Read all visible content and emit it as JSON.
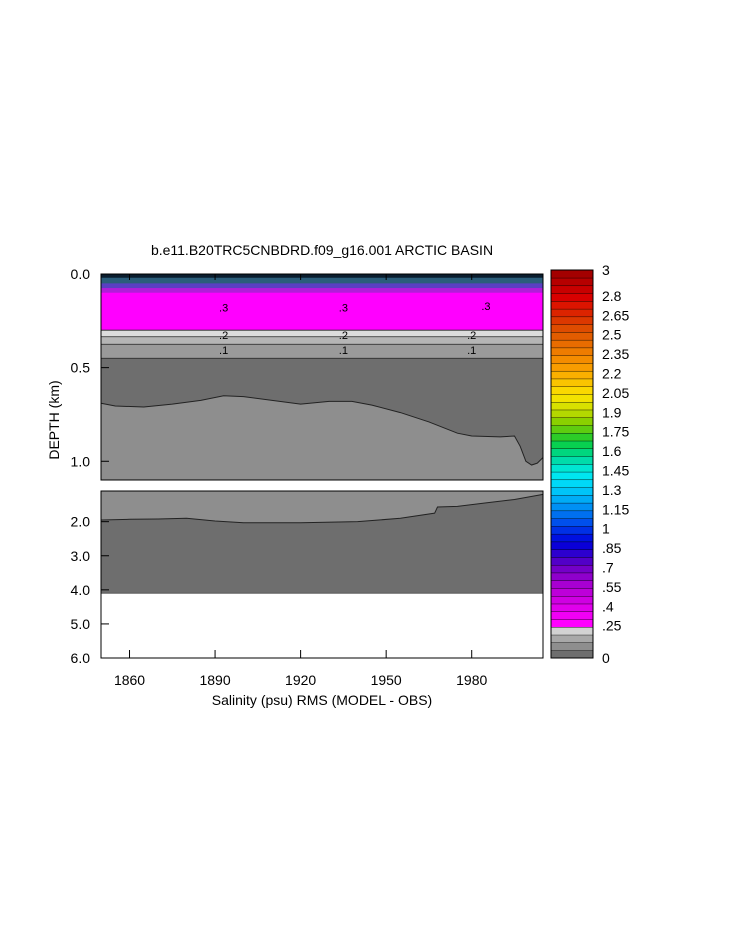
{
  "chart_data": {
    "type": "heatmap",
    "title": "b.e11.B20TRC5CNBDRD.f09_g16.001 ARCTIC BASIN",
    "xlabel": "Salinity (psu) RMS (MODEL - OBS)",
    "ylabel": "DEPTH (km)",
    "xlim": [
      1850,
      2005
    ],
    "x_ticks": [
      1860,
      1890,
      1920,
      1950,
      1980
    ],
    "x_tick_labels": [
      "1860",
      "1890",
      "1920",
      "1950",
      "1980"
    ],
    "panels": [
      {
        "name": "upper",
        "ylim": [
          0.0,
          1.1
        ],
        "y_ticks": [
          0.0,
          0.5,
          1.0
        ],
        "y_tick_labels": [
          "0.0",
          "0.5",
          "1.0"
        ],
        "bands": [
          {
            "top": 0.0,
            "bottom": 0.02,
            "color": "#0a1d2e"
          },
          {
            "top": 0.02,
            "bottom": 0.05,
            "color": "#2b5d7a"
          },
          {
            "top": 0.05,
            "bottom": 0.075,
            "color": "#5a3fc2"
          },
          {
            "top": 0.075,
            "bottom": 0.1,
            "color": "#b01ed8"
          },
          {
            "top": 0.1,
            "bottom": 0.3,
            "color": "#ff00ff"
          },
          {
            "top": 0.3,
            "bottom": 0.335,
            "color": "#dcdcdc"
          },
          {
            "top": 0.335,
            "bottom": 0.375,
            "color": "#b5b5b5"
          },
          {
            "top": 0.375,
            "bottom": 0.45,
            "color": "#9a9a9a"
          },
          {
            "top": 0.45,
            "bottom": 1.1,
            "color": "#6e6e6e"
          }
        ],
        "filled_region": {
          "color": "#8e8e8e",
          "x": [
            1850,
            1855,
            1865,
            1875,
            1885,
            1893,
            1900,
            1910,
            1920,
            1930,
            1938,
            1945,
            1955,
            1965,
            1975,
            1980,
            1990,
            1995,
            1997,
            1999,
            2001,
            2003,
            2005
          ],
          "top_depth": [
            0.69,
            0.705,
            0.71,
            0.695,
            0.675,
            0.65,
            0.655,
            0.675,
            0.695,
            0.68,
            0.68,
            0.7,
            0.74,
            0.79,
            0.85,
            0.865,
            0.87,
            0.865,
            0.92,
            1.0,
            1.02,
            1.01,
            0.98
          ]
        },
        "contour_labels": [
          {
            "x": 1893,
            "depth": 0.18,
            "text": ".3"
          },
          {
            "x": 1935,
            "depth": 0.18,
            "text": ".3"
          },
          {
            "x": 1985,
            "depth": 0.17,
            "text": ".3"
          },
          {
            "x": 1893,
            "depth": 0.325,
            "text": ".2"
          },
          {
            "x": 1935,
            "depth": 0.325,
            "text": ".2"
          },
          {
            "x": 1980,
            "depth": 0.325,
            "text": ".2"
          },
          {
            "x": 1893,
            "depth": 0.405,
            "text": ".1"
          },
          {
            "x": 1935,
            "depth": 0.405,
            "text": ".1"
          },
          {
            "x": 1980,
            "depth": 0.405,
            "text": ".1"
          }
        ]
      },
      {
        "name": "lower",
        "ylim": [
          1.1,
          6.0
        ],
        "y_ticks": [
          2.0,
          3.0,
          4.0,
          5.0,
          6.0
        ],
        "y_tick_labels": [
          "2.0",
          "3.0",
          "4.0",
          "5.0",
          "6.0"
        ],
        "base_color": "#6e6e6e",
        "bottom_depth": 4.1,
        "below_color": "#ffffff",
        "filled_region": {
          "color": "#8e8e8e",
          "x": [
            1850,
            1860,
            1870,
            1880,
            1890,
            1900,
            1920,
            1940,
            1955,
            1967,
            1968,
            1975,
            1985,
            1995,
            2005
          ],
          "boundary_depth": [
            1.95,
            1.93,
            1.92,
            1.9,
            1.98,
            2.03,
            2.03,
            2.0,
            1.9,
            1.75,
            1.57,
            1.55,
            1.45,
            1.35,
            1.2
          ]
        }
      }
    ],
    "colorbar": {
      "min": 0,
      "max": 3,
      "colors": [
        "#6e6e6e",
        "#8e8e8e",
        "#a8a8a8",
        "#d2d2d2",
        "#ff00ff",
        "#f000f5",
        "#e000ec",
        "#cf00e2",
        "#bd00d9",
        "#a800d2",
        "#8f00cc",
        "#7400c8",
        "#5200c8",
        "#2d00cf",
        "#0a00d8",
        "#0010e0",
        "#0030e6",
        "#0050ec",
        "#0070f0",
        "#0090f4",
        "#00acf6",
        "#00c4f8",
        "#00d8f8",
        "#00e6f0",
        "#00e6d2",
        "#00dcaa",
        "#00d67e",
        "#08d050",
        "#2ccc28",
        "#5ecc10",
        "#8ad000",
        "#b4d800",
        "#d8e000",
        "#f2e200",
        "#fad800",
        "#fac400",
        "#fab000",
        "#f89c00",
        "#f48c00",
        "#ee7c00",
        "#e86c00",
        "#e25c00",
        "#de4c00",
        "#dc3800",
        "#dc2400",
        "#dc1400",
        "#d80000",
        "#c80000",
        "#b60000",
        "#a40000"
      ],
      "tick_values": [
        3,
        2.8,
        2.65,
        2.5,
        2.35,
        2.2,
        2.05,
        1.9,
        1.75,
        1.6,
        1.45,
        1.3,
        1.15,
        1,
        0.85,
        0.7,
        0.55,
        0.4,
        0.25,
        0
      ],
      "tick_labels": [
        "3",
        "2.8",
        "2.65",
        "2.5",
        "2.35",
        "2.2",
        "2.05",
        "1.9",
        "1.75",
        "1.6",
        "1.45",
        "1.3",
        "1.15",
        "1",
        ".85",
        ".7",
        ".55",
        ".4",
        ".25",
        "0"
      ]
    }
  }
}
